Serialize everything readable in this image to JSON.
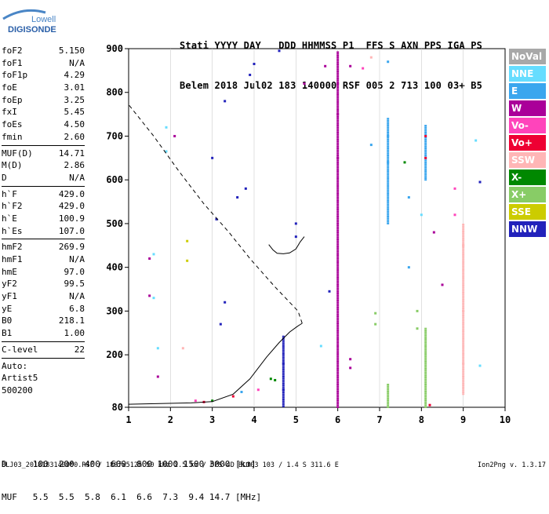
{
  "logo": {
    "line1": "Lowell",
    "line2": "DIGISONDE"
  },
  "header": {
    "row1": "Stati YYYY DAY   DDD HHMMSS P1  FFS S AXN PPS IGA PS",
    "row2": "Belem 2018 Jul02 183 140000 RSF 005 2 713 100 03+ B5"
  },
  "params": [
    {
      "k": "foF2",
      "v": "5.150"
    },
    {
      "k": "foF1",
      "v": "N/A"
    },
    {
      "k": "foF1p",
      "v": "4.29"
    },
    {
      "k": "foE",
      "v": "3.01"
    },
    {
      "k": "foEp",
      "v": "3.25"
    },
    {
      "k": "fxI",
      "v": "5.45"
    },
    {
      "k": "foEs",
      "v": "4.50"
    },
    {
      "k": "fmin",
      "v": "2.60"
    },
    {
      "sep": true
    },
    {
      "k": "MUF(D)",
      "v": "14.71"
    },
    {
      "k": "M(D)",
      "v": "2.86"
    },
    {
      "k": "D",
      "v": "N/A"
    },
    {
      "sep": true
    },
    {
      "k": "h`F",
      "v": "429.0"
    },
    {
      "k": "h`F2",
      "v": "429.0"
    },
    {
      "k": "h`E",
      "v": "100.9"
    },
    {
      "k": "h`Es",
      "v": "107.0"
    },
    {
      "sep": true
    },
    {
      "k": "hmF2",
      "v": "269.9"
    },
    {
      "k": "hmF1",
      "v": "N/A"
    },
    {
      "k": "hmE",
      "v": "97.0"
    },
    {
      "k": "yF2",
      "v": "99.5"
    },
    {
      "k": "yF1",
      "v": "N/A"
    },
    {
      "k": "yE",
      "v": "6.8"
    },
    {
      "k": "B0",
      "v": "218.1"
    },
    {
      "k": "B1",
      "v": "1.00"
    },
    {
      "sep": true
    },
    {
      "k": "C-level",
      "v": "22"
    },
    {
      "sep": true
    },
    {
      "k": "Auto:",
      "v": ""
    },
    {
      "k": "Artist5",
      "v": ""
    },
    {
      "k": "500200",
      "v": ""
    }
  ],
  "legend": [
    {
      "label": "NoVal",
      "color": "#a8a8a8"
    },
    {
      "label": "NNE",
      "color": "#66ddff"
    },
    {
      "label": "E",
      "color": "#3aa6ee"
    },
    {
      "label": "W",
      "color": "#aa0099"
    },
    {
      "label": "Vo-",
      "color": "#ff44bb"
    },
    {
      "label": "Vo+",
      "color": "#ee0033"
    },
    {
      "label": "SSW",
      "color": "#ffb6b6"
    },
    {
      "label": "X-",
      "color": "#008800"
    },
    {
      "label": "X+",
      "color": "#88cc66"
    },
    {
      "label": "SSE",
      "color": "#cccc00"
    },
    {
      "label": "NNW",
      "color": "#2222bb"
    }
  ],
  "dtable": {
    "row1": "D     100  200  400  600  800 1000 1500 3000 [km]",
    "row2": "MUF   5.5  5.5  5.8  6.1  6.6  7.3  9.4 14.7 [MHz]"
  },
  "footer": "BLJ03_2018183140000.RSF / 180fx512h 50 kHz 2.5 km / DPS-4D BLJ03 103 / 1.4 S 311.6 E",
  "footer_right": "Ion2Png v. 1.3.17",
  "chart_data": {
    "type": "scatter",
    "xlim": [
      1,
      10
    ],
    "ylim": [
      80,
      900
    ],
    "x_ticks": [
      1,
      2,
      3,
      4,
      5,
      6,
      7,
      8,
      9,
      10
    ],
    "y_ticks": [
      80,
      200,
      300,
      400,
      500,
      600,
      700,
      800,
      900
    ],
    "profile_solid": [
      {
        "x": 1.0,
        "y": 87
      },
      {
        "x": 2.5,
        "y": 90
      },
      {
        "x": 3.0,
        "y": 93
      },
      {
        "x": 3.5,
        "y": 110
      },
      {
        "x": 3.9,
        "y": 145
      },
      {
        "x": 4.3,
        "y": 195
      },
      {
        "x": 4.6,
        "y": 228
      },
      {
        "x": 4.85,
        "y": 252
      },
      {
        "x": 5.05,
        "y": 266
      },
      {
        "x": 5.15,
        "y": 272
      }
    ],
    "profile_dashed": [
      {
        "x": 5.15,
        "y": 272
      },
      {
        "x": 5.05,
        "y": 300
      },
      {
        "x": 4.5,
        "y": 355
      },
      {
        "x": 3.9,
        "y": 420
      },
      {
        "x": 3.4,
        "y": 480
      },
      {
        "x": 2.8,
        "y": 545
      },
      {
        "x": 2.2,
        "y": 620
      },
      {
        "x": 1.6,
        "y": 700
      },
      {
        "x": 1.0,
        "y": 772
      }
    ],
    "trace_fregion": [
      {
        "x": 4.35,
        "y": 452
      },
      {
        "x": 4.45,
        "y": 440
      },
      {
        "x": 4.55,
        "y": 432
      },
      {
        "x": 4.7,
        "y": 431
      },
      {
        "x": 4.85,
        "y": 433
      },
      {
        "x": 5.0,
        "y": 442
      },
      {
        "x": 5.1,
        "y": 458
      },
      {
        "x": 5.2,
        "y": 470
      }
    ],
    "echoes": [
      {
        "x": 6.0,
        "y": 650,
        "c": "#aa0099"
      },
      {
        "x": 6.0,
        "y": 750,
        "c": "#aa0099"
      },
      {
        "x": 6.0,
        "y": 820,
        "c": "#aa0099"
      },
      {
        "x": 7.2,
        "y": 870,
        "c": "#3aa6ee"
      },
      {
        "x": 7.2,
        "y": 700,
        "c": "#3aa6ee"
      },
      {
        "x": 7.2,
        "y": 640,
        "c": "#3aa6ee"
      },
      {
        "x": 8.1,
        "y": 700,
        "c": "#ee0033"
      },
      {
        "x": 8.1,
        "y": 650,
        "c": "#ee0033"
      },
      {
        "x": 9.0,
        "y": 450,
        "c": "#ffb6b6"
      },
      {
        "x": 9.0,
        "y": 300,
        "c": "#ffb6b6"
      },
      {
        "x": 9.0,
        "y": 180,
        "c": "#ffb6b6"
      },
      {
        "x": 4.7,
        "y": 180,
        "c": "#2222bb"
      },
      {
        "x": 4.7,
        "y": 120,
        "c": "#2222bb"
      },
      {
        "x": 5.0,
        "y": 500,
        "c": "#2222bb"
      },
      {
        "x": 5.0,
        "y": 470,
        "c": "#2222bb"
      },
      {
        "x": 4.4,
        "y": 145,
        "c": "#008800"
      },
      {
        "x": 4.5,
        "y": 142,
        "c": "#008800"
      },
      {
        "x": 3.7,
        "y": 115,
        "c": "#3aa6ee"
      },
      {
        "x": 3.5,
        "y": 105,
        "c": "#ee0033"
      },
      {
        "x": 2.8,
        "y": 92,
        "c": "#ee0033"
      },
      {
        "x": 2.6,
        "y": 95,
        "c": "#ff44bb"
      },
      {
        "x": 1.9,
        "y": 720,
        "c": "#66ddff"
      },
      {
        "x": 1.9,
        "y": 665,
        "c": "#66ddff"
      },
      {
        "x": 1.6,
        "y": 430,
        "c": "#66ddff"
      },
      {
        "x": 1.6,
        "y": 330,
        "c": "#66ddff"
      },
      {
        "x": 2.1,
        "y": 700,
        "c": "#aa0099"
      },
      {
        "x": 1.5,
        "y": 420,
        "c": "#aa0099"
      },
      {
        "x": 1.5,
        "y": 335,
        "c": "#aa0099"
      },
      {
        "x": 1.7,
        "y": 150,
        "c": "#aa0099"
      },
      {
        "x": 2.4,
        "y": 460,
        "c": "#cccc00"
      },
      {
        "x": 2.4,
        "y": 415,
        "c": "#cccc00"
      },
      {
        "x": 3.0,
        "y": 650,
        "c": "#2222bb"
      },
      {
        "x": 3.3,
        "y": 780,
        "c": "#2222bb"
      },
      {
        "x": 3.3,
        "y": 320,
        "c": "#2222bb"
      },
      {
        "x": 3.2,
        "y": 270,
        "c": "#2222bb"
      },
      {
        "x": 3.6,
        "y": 560,
        "c": "#2222bb"
      },
      {
        "x": 3.9,
        "y": 840,
        "c": "#2222bb"
      },
      {
        "x": 4.0,
        "y": 865,
        "c": "#2222bb"
      },
      {
        "x": 4.6,
        "y": 895,
        "c": "#2222bb"
      },
      {
        "x": 5.2,
        "y": 820,
        "c": "#aa0099"
      },
      {
        "x": 5.7,
        "y": 860,
        "c": "#aa0099"
      },
      {
        "x": 6.3,
        "y": 860,
        "c": "#aa0099"
      },
      {
        "x": 6.6,
        "y": 855,
        "c": "#ff44bb"
      },
      {
        "x": 6.8,
        "y": 880,
        "c": "#ffb6b6"
      },
      {
        "x": 6.8,
        "y": 680,
        "c": "#3aa6ee"
      },
      {
        "x": 7.6,
        "y": 640,
        "c": "#008800"
      },
      {
        "x": 7.7,
        "y": 560,
        "c": "#3aa6ee"
      },
      {
        "x": 7.7,
        "y": 400,
        "c": "#3aa6ee"
      },
      {
        "x": 8.0,
        "y": 520,
        "c": "#66ddff"
      },
      {
        "x": 8.3,
        "y": 480,
        "c": "#aa0099"
      },
      {
        "x": 8.5,
        "y": 360,
        "c": "#aa0099"
      },
      {
        "x": 8.8,
        "y": 580,
        "c": "#ff44bb"
      },
      {
        "x": 8.8,
        "y": 520,
        "c": "#ff44bb"
      },
      {
        "x": 9.4,
        "y": 595,
        "c": "#2222bb"
      },
      {
        "x": 9.3,
        "y": 690,
        "c": "#66ddff"
      },
      {
        "x": 9.4,
        "y": 175,
        "c": "#66ddff"
      },
      {
        "x": 8.2,
        "y": 85,
        "c": "#ee0033"
      },
      {
        "x": 6.3,
        "y": 170,
        "c": "#aa0099"
      },
      {
        "x": 6.3,
        "y": 190,
        "c": "#aa0099"
      },
      {
        "x": 6.9,
        "y": 295,
        "c": "#88cc66"
      },
      {
        "x": 6.9,
        "y": 270,
        "c": "#88cc66"
      },
      {
        "x": 7.9,
        "y": 300,
        "c": "#88cc66"
      },
      {
        "x": 7.9,
        "y": 260,
        "c": "#88cc66"
      },
      {
        "x": 5.8,
        "y": 345,
        "c": "#2222bb"
      },
      {
        "x": 5.6,
        "y": 220,
        "c": "#66ddff"
      },
      {
        "x": 2.3,
        "y": 215,
        "c": "#ffb6b6"
      },
      {
        "x": 1.7,
        "y": 215,
        "c": "#66ddff"
      },
      {
        "x": 3.1,
        "y": 510,
        "c": "#2222bb"
      },
      {
        "x": 3.8,
        "y": 580,
        "c": "#2222bb"
      },
      {
        "x": 4.1,
        "y": 120,
        "c": "#ff44bb"
      },
      {
        "x": 3.0,
        "y": 95,
        "c": "#008800"
      }
    ],
    "strips": [
      {
        "x": 6.0,
        "y0": 80,
        "y1": 895,
        "c": "#aa0099"
      },
      {
        "x": 4.7,
        "y0": 82,
        "y1": 245,
        "c": "#2222bb"
      },
      {
        "x": 7.2,
        "y0": 80,
        "y1": 135,
        "c": "#88cc66"
      },
      {
        "x": 7.2,
        "y0": 500,
        "y1": 740,
        "c": "#3aa6ee"
      },
      {
        "x": 8.1,
        "y0": 600,
        "y1": 725,
        "c": "#3aa6ee"
      },
      {
        "x": 8.1,
        "y0": 80,
        "y1": 260,
        "c": "#88cc66"
      },
      {
        "x": 9.0,
        "y0": 110,
        "y1": 500,
        "c": "#ffb6b6"
      }
    ]
  }
}
